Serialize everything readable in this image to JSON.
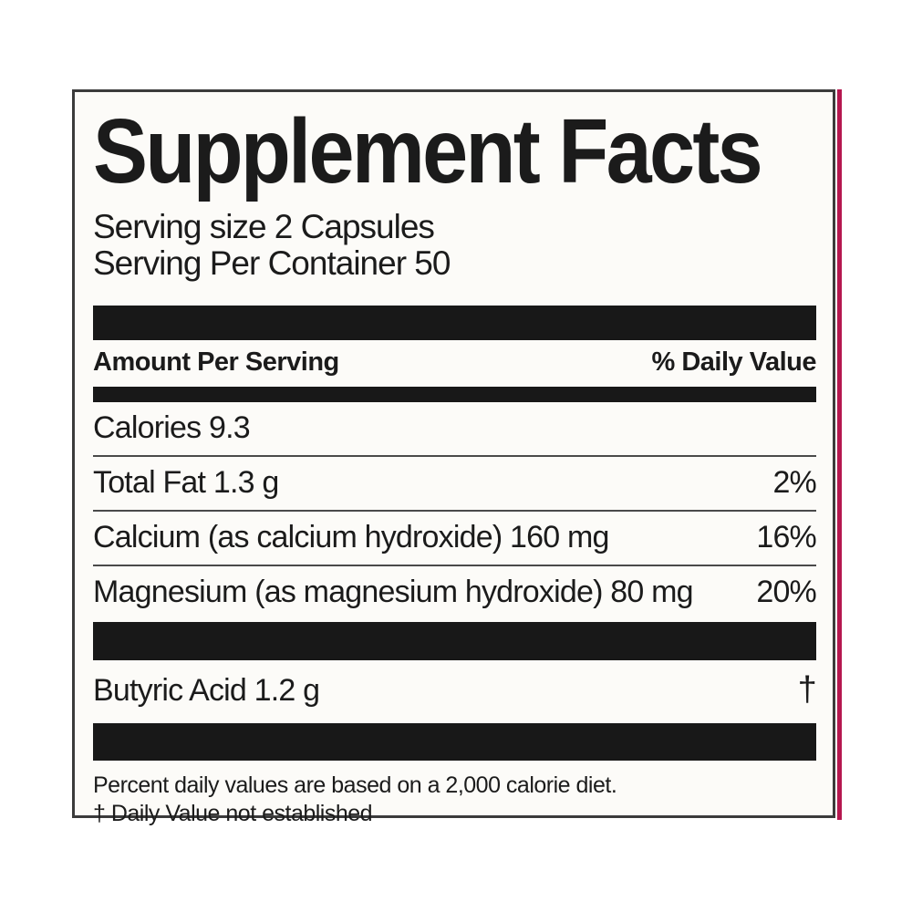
{
  "label": {
    "title": "Supplement Facts",
    "serving_size": "Serving size 2 Capsules",
    "servings_per_container": "Serving Per Container 50",
    "header": {
      "amount_label": "Amount Per Serving",
      "dv_label": "% Daily Value"
    },
    "rows": [
      {
        "name": "Calories 9.3",
        "dv": ""
      },
      {
        "name": "Total Fat 1.3 g",
        "dv": "2%"
      },
      {
        "name": "Calcium (as calcium hydroxide) 160 mg",
        "dv": "16%"
      },
      {
        "name": "Magnesium (as magnesium hydroxide) 80 mg",
        "dv": "20%"
      }
    ],
    "other_rows": [
      {
        "name": "Butyric Acid 1.2 g",
        "dv": "†"
      }
    ],
    "footnotes": [
      "Percent daily values are based on a 2,000 calorie diet.",
      "†  Daily Value not established"
    ],
    "colors": {
      "accent_stripe": "#b5174f",
      "divider_bar": "#181818",
      "panel_background": "#fcfbf8",
      "panel_border": "#3b3b3b",
      "text": "#1b1b1b"
    }
  }
}
